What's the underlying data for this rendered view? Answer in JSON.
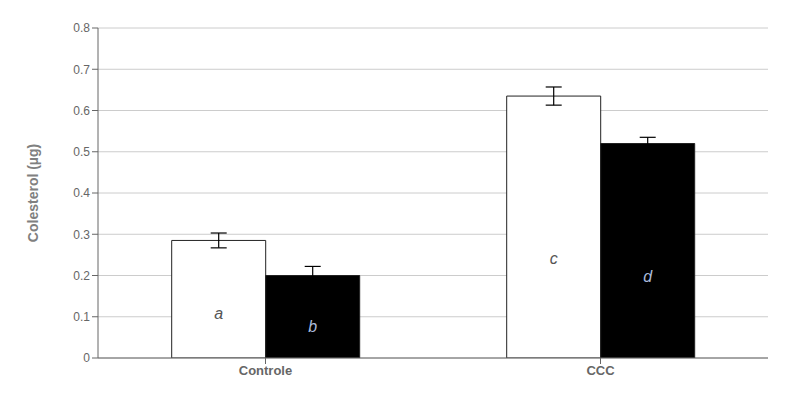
{
  "chart_data": {
    "type": "bar",
    "categories": [
      "Controle",
      "CCC"
    ],
    "series": [
      {
        "color": "white",
        "values": [
          0.285,
          0.635
        ],
        "errors": [
          0.018,
          0.022
        ],
        "labels": [
          "a",
          "c"
        ],
        "label_color": "#555555"
      },
      {
        "color": "black",
        "values": [
          0.2,
          0.52
        ],
        "errors": [
          0.022,
          0.015
        ],
        "labels": [
          "b",
          "d"
        ],
        "label_color": "#aabbdd"
      }
    ],
    "ylabel": "Colesterol (µg)",
    "ylim": [
      0,
      0.8
    ],
    "yticks": [
      0,
      0.1,
      0.2,
      0.3,
      0.4,
      0.5,
      0.6,
      0.7,
      0.8
    ],
    "grid": true
  }
}
